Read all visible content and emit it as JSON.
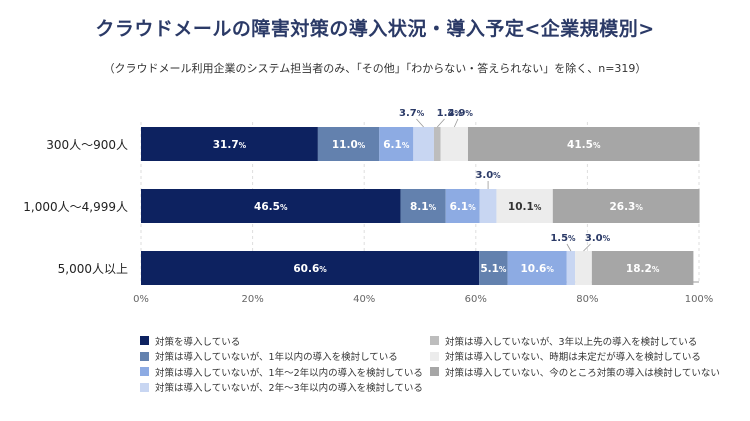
{
  "title": "クラウドメールの障害対策の導入状況・導入予定<企業規模別>",
  "subtitle": "（クラウドメール利用企業のシステム担当者のみ、「その他」「わからない・答えられない」を除く、n=319）",
  "colors": [
    "#0d2260",
    "#6381ae",
    "#8dabe3",
    "#c8d6f2",
    "#bdbdbd",
    "#ececec",
    "#a6a6a6"
  ],
  "chart_data": {
    "type": "bar",
    "orientation": "horizontal",
    "stacked": true,
    "categories": [
      "300人～900人",
      "1,000人～4,999人",
      "5,000人以上"
    ],
    "series": [
      {
        "name": "対策を導入している",
        "values": [
          31.7,
          46.5,
          60.6
        ]
      },
      {
        "name": "対策は導入していないが、1年以内の導入を検討している",
        "values": [
          11.0,
          8.1,
          5.1
        ]
      },
      {
        "name": "対策は導入していないが、1年～2年以内の導入を検討している",
        "values": [
          6.1,
          6.1,
          10.6
        ]
      },
      {
        "name": "対策は導入していないが、2年～3年以内の導入を検討している",
        "values": [
          3.7,
          3.0,
          1.5
        ]
      },
      {
        "name": "対策は導入していないが、3年以上先の導入を検討している",
        "values": [
          1.2,
          0.0,
          0.0
        ]
      },
      {
        "name": "対策は導入していない、時期は未定だが導入を検討している",
        "values": [
          4.9,
          10.1,
          3.0
        ]
      },
      {
        "name": "対策は導入していない、今のところ対策の導入は検討していない",
        "values": [
          41.5,
          26.3,
          18.2
        ]
      }
    ],
    "xlim": [
      0,
      100
    ],
    "xticks": [
      "0%",
      "20%",
      "40%",
      "60%",
      "80%",
      "100%"
    ],
    "grid": true,
    "legend_position": "bottom",
    "callouts": [
      [
        false,
        false,
        false,
        true,
        true,
        true,
        false
      ],
      [
        false,
        false,
        false,
        true,
        false,
        false,
        false
      ],
      [
        false,
        false,
        false,
        true,
        false,
        true,
        false
      ]
    ]
  }
}
